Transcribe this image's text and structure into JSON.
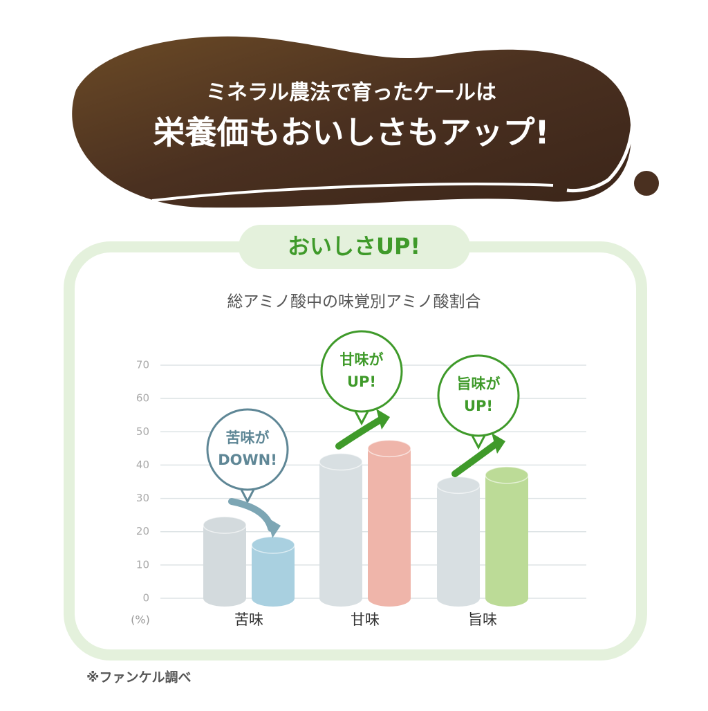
{
  "header": {
    "line1": "ミネラル農法で育ったケールは",
    "line2": "栄養価もおいしさもアップ!"
  },
  "badge": "おいしさUP!",
  "chart_data": {
    "type": "bar",
    "title": "総アミノ酸中の味覚別アミノ酸割合",
    "unit_label": "(%)",
    "categories": [
      "苦味",
      "甘味",
      "旨味"
    ],
    "series": [
      {
        "colors": [
          "#d3dadd",
          "#d8dfe2",
          "#d8dfe2"
        ],
        "values": [
          22,
          41,
          34
        ]
      },
      {
        "colors": [
          "#a9d0e0",
          "#efb5aa",
          "#bcdb97"
        ],
        "values": [
          16,
          45,
          37
        ]
      }
    ],
    "ylim": [
      0,
      70
    ],
    "yticks": [
      0,
      10,
      20,
      30,
      40,
      50,
      60,
      70
    ],
    "grid": true,
    "annotations": [
      {
        "lines": [
          "苦味が",
          "DOWN!"
        ],
        "color": "#5f8796"
      },
      {
        "lines": [
          "甘味が",
          "UP!"
        ],
        "color": "#3f9a2a"
      },
      {
        "lines": [
          "旨味が",
          "UP!"
        ],
        "color": "#3f9a2a"
      }
    ]
  },
  "footer": "※ファンケル調べ"
}
